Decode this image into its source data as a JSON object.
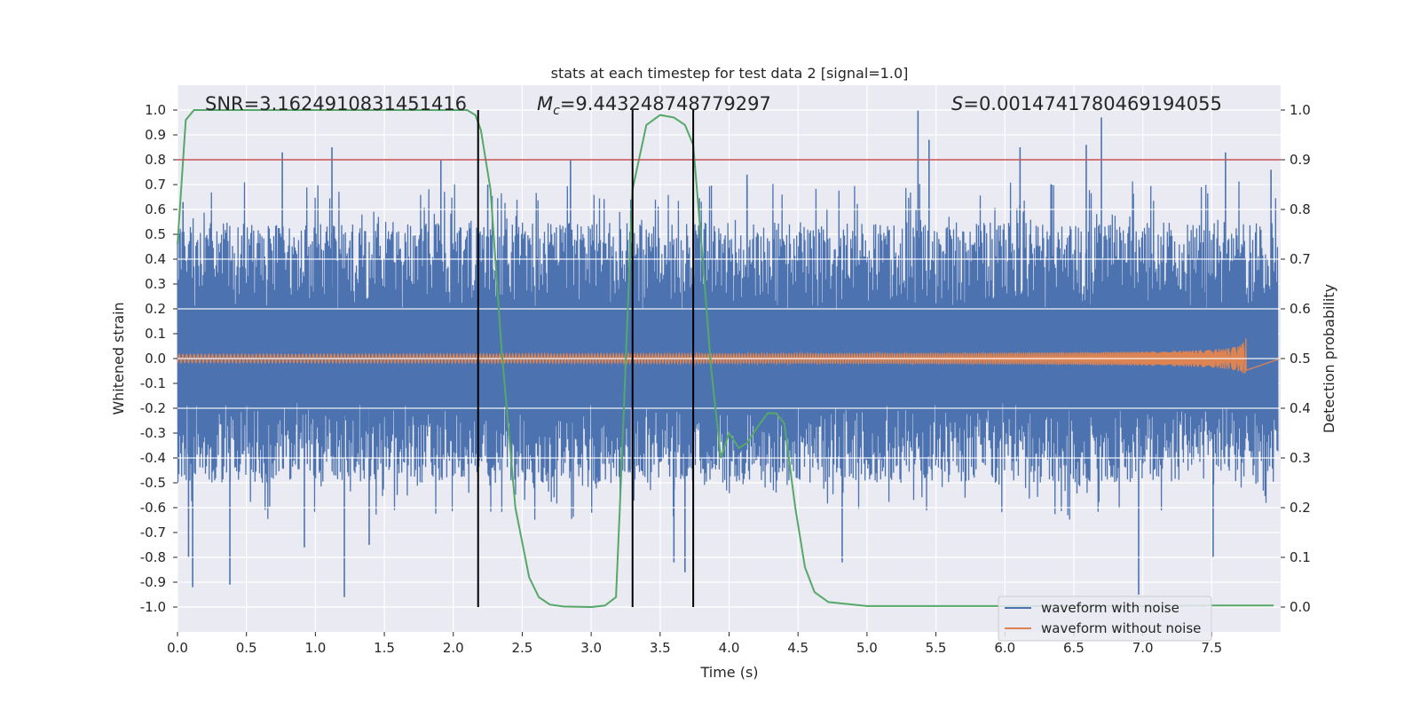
{
  "chart_data": {
    "type": "line",
    "title": "stats at each timestep for test data 2 [signal=1.0]",
    "xlabel": "Time (s)",
    "ylabel_left": "Whitened strain",
    "ylabel_right": "Detection probability",
    "xlim": [
      0.0,
      8.0
    ],
    "ylim_left": [
      -1.1,
      1.1
    ],
    "ylim_right": [
      -0.05,
      1.05
    ],
    "x_ticks": [
      "0.0",
      "0.5",
      "1.0",
      "1.5",
      "2.0",
      "2.5",
      "3.0",
      "3.5",
      "4.0",
      "4.5",
      "5.0",
      "5.5",
      "6.0",
      "6.5",
      "7.0",
      "7.5"
    ],
    "y_left_ticks": [
      "1.0",
      "0.9",
      "0.8",
      "0.7",
      "0.6",
      "0.5",
      "0.4",
      "0.3",
      "0.2",
      "0.1",
      "0.0",
      "-0.1",
      "-0.2",
      "-0.3",
      "-0.4",
      "-0.5",
      "-0.6",
      "-0.7",
      "-0.8",
      "-0.9",
      "-1.0"
    ],
    "y_right_ticks": [
      "1.0",
      "0.9",
      "0.8",
      "0.7",
      "0.6",
      "0.5",
      "0.4",
      "0.3",
      "0.2",
      "0.1",
      "0.0"
    ],
    "grid": true,
    "annotations": {
      "snr": "SNR=3.1624910831451416",
      "mc_symbol": "M",
      "mc_sub": "c",
      "mc_value": "=9.443248748779297",
      "s_symbol": "S",
      "s_value": "=0.0014741780469194055"
    },
    "threshold": {
      "probability": 0.9,
      "color": "#c44e52"
    },
    "vertical_lines_time": [
      2.18,
      3.3,
      3.74
    ],
    "series": [
      {
        "name": "waveform with noise",
        "color": "#4c72b0",
        "axis": "left",
        "typical_range": [
          -0.5,
          0.55
        ],
        "spikes": [
          [
            0.04,
            0.63
          ],
          [
            0.08,
            -0.8
          ],
          [
            0.11,
            -0.92
          ],
          [
            0.38,
            -0.91
          ],
          [
            0.76,
            0.83
          ],
          [
            0.92,
            -0.76
          ],
          [
            1.12,
            0.85
          ],
          [
            1.21,
            -0.96
          ],
          [
            1.39,
            -0.75
          ],
          [
            1.91,
            0.8
          ],
          [
            2.25,
            0.7
          ],
          [
            2.85,
            0.8
          ],
          [
            3.6,
            -0.82
          ],
          [
            3.68,
            -0.86
          ],
          [
            4.13,
            0.74
          ],
          [
            4.82,
            -0.82
          ],
          [
            5.37,
            1.0
          ],
          [
            5.45,
            0.88
          ],
          [
            6.11,
            0.85
          ],
          [
            6.59,
            0.86
          ],
          [
            6.7,
            0.97
          ],
          [
            6.97,
            -0.95
          ],
          [
            7.51,
            -0.8
          ],
          [
            7.6,
            0.83
          ],
          [
            7.93,
            0.76
          ]
        ]
      },
      {
        "name": "waveform without noise",
        "color": "#dd8452",
        "axis": "left",
        "chirp_end_time": 7.75,
        "end_amplitude": 0.11
      },
      {
        "name": "detection probability",
        "color": "#55a868",
        "axis": "right",
        "x": [
          0.0,
          0.06,
          0.12,
          0.3,
          1.0,
          1.5,
          2.0,
          2.1,
          2.16,
          2.2,
          2.27,
          2.35,
          2.45,
          2.55,
          2.62,
          2.7,
          2.8,
          3.0,
          3.1,
          3.18,
          3.22,
          3.3,
          3.4,
          3.5,
          3.6,
          3.68,
          3.74,
          3.8,
          3.87,
          3.94,
          4.0,
          4.07,
          4.13,
          4.2,
          4.28,
          4.34,
          4.4,
          4.48,
          4.55,
          4.62,
          4.72,
          5.0,
          5.5,
          6.0,
          6.5,
          7.0,
          7.5,
          7.95
        ],
        "y": [
          0.73,
          0.98,
          1.0,
          1.0,
          1.0,
          1.0,
          1.0,
          1.0,
          0.99,
          0.96,
          0.84,
          0.52,
          0.2,
          0.06,
          0.02,
          0.005,
          0.001,
          0.0,
          0.003,
          0.02,
          0.28,
          0.84,
          0.97,
          0.99,
          0.985,
          0.97,
          0.93,
          0.73,
          0.48,
          0.3,
          0.35,
          0.32,
          0.33,
          0.36,
          0.39,
          0.39,
          0.37,
          0.2,
          0.08,
          0.03,
          0.01,
          0.002,
          0.002,
          0.002,
          0.002,
          0.002,
          0.003,
          0.003
        ]
      }
    ],
    "legend": {
      "location": "lower-right",
      "entries": [
        {
          "label": "waveform with noise",
          "color": "#4c72b0"
        },
        {
          "label": "waveform without noise",
          "color": "#dd8452"
        }
      ]
    }
  }
}
